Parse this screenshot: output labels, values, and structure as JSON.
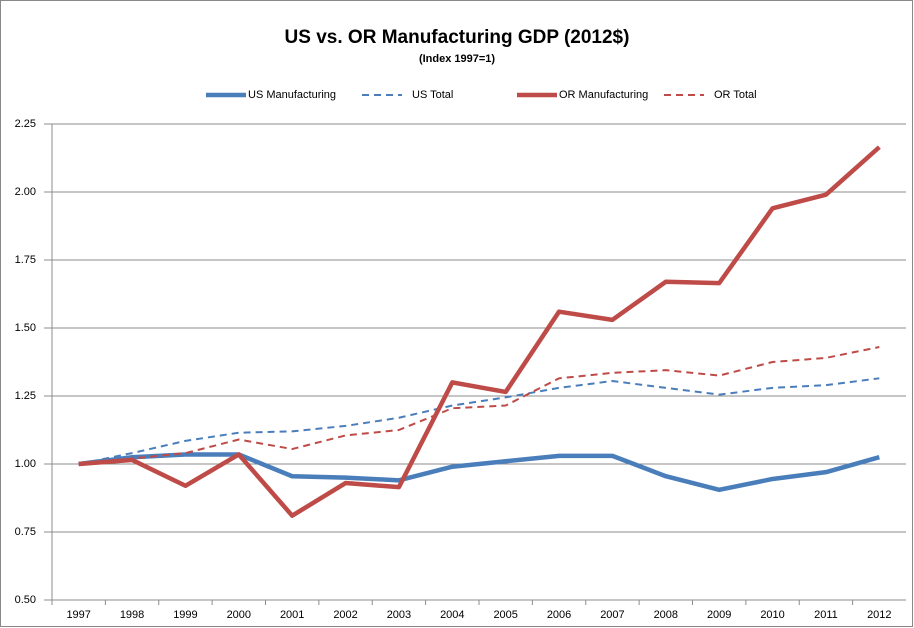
{
  "chart_data": {
    "type": "line",
    "title": "US vs. OR Manufacturing GDP (2012$)",
    "subtitle": "(Index 1997=1)",
    "categories": [
      "1997",
      "1998",
      "1999",
      "2000",
      "2001",
      "2002",
      "2003",
      "2004",
      "2005",
      "2006",
      "2007",
      "2008",
      "2009",
      "2010",
      "2011",
      "2012"
    ],
    "series": [
      {
        "name": "US Manufacturing",
        "color": "#4a7ebb",
        "dashed": false,
        "values": [
          1.0,
          1.025,
          1.035,
          1.035,
          0.955,
          0.95,
          0.94,
          0.99,
          1.01,
          1.03,
          1.03,
          0.955,
          0.905,
          0.945,
          0.97,
          1.025
        ]
      },
      {
        "name": "US Total",
        "color": "#4a7ebb",
        "dashed": true,
        "values": [
          1.0,
          1.04,
          1.085,
          1.115,
          1.12,
          1.14,
          1.17,
          1.215,
          1.245,
          1.28,
          1.305,
          1.28,
          1.255,
          1.28,
          1.29,
          1.315
        ]
      },
      {
        "name": "OR Manufacturing",
        "color": "#be4b48",
        "dashed": false,
        "values": [
          1.0,
          1.015,
          0.92,
          1.035,
          0.81,
          0.93,
          0.915,
          1.3,
          1.265,
          1.56,
          1.53,
          1.67,
          1.665,
          1.94,
          1.99,
          2.165
        ]
      },
      {
        "name": "OR Total",
        "color": "#be4b48",
        "dashed": true,
        "values": [
          1.0,
          1.02,
          1.04,
          1.09,
          1.055,
          1.105,
          1.125,
          1.205,
          1.215,
          1.315,
          1.335,
          1.345,
          1.325,
          1.375,
          1.39,
          1.43
        ]
      }
    ],
    "ylim": [
      0.5,
      2.25
    ],
    "yticks": [
      {
        "value": 0.5,
        "label": "0.50"
      },
      {
        "value": 0.75,
        "label": "0.75"
      },
      {
        "value": 1,
        "label": "1.00"
      },
      {
        "value": 1.25,
        "label": "1.25"
      },
      {
        "value": 1.5,
        "label": "1.50"
      },
      {
        "value": 1.75,
        "label": "1.75"
      },
      {
        "value": 2,
        "label": "2.00"
      },
      {
        "value": 2.25,
        "label": "2.25"
      }
    ],
    "grid": true,
    "legend": "top"
  }
}
